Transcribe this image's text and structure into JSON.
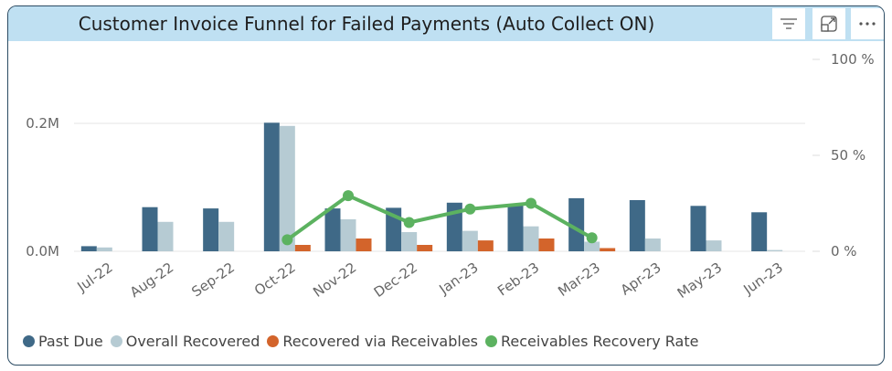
{
  "visual": {
    "title": "Customer Invoice Funnel for Failed Payments (Auto Collect ON)",
    "toolbar": [
      {
        "name": "filter-icon"
      },
      {
        "name": "focus-mode-icon"
      },
      {
        "name": "more-options-icon"
      }
    ]
  },
  "colors": {
    "past_due": "#3f6987",
    "overall_recovered": "#b6cbd3",
    "recovered_receivables": "#d3642b",
    "recovery_rate": "#5cb260",
    "title_bar": "#bfe0f2"
  },
  "chart_data": {
    "type": "bar",
    "title": "Customer Invoice Funnel for Failed Payments (Auto Collect ON)",
    "categories": [
      "Jul-22",
      "Aug-22",
      "Sep-22",
      "Oct-22",
      "Nov-22",
      "Dec-22",
      "Jan-23",
      "Feb-23",
      "Mar-23",
      "Apr-23",
      "May-23",
      "Jun-23"
    ],
    "series": [
      {
        "name": "Past Due",
        "type": "bar",
        "axis": "left",
        "values": [
          8000,
          69000,
          67000,
          201000,
          67000,
          68000,
          76000,
          73000,
          83000,
          80000,
          71000,
          61000
        ]
      },
      {
        "name": "Overall Recovered",
        "type": "bar",
        "axis": "left",
        "values": [
          6000,
          46000,
          46000,
          196000,
          50000,
          30000,
          32000,
          39000,
          15000,
          20000,
          17000,
          2000
        ]
      },
      {
        "name": "Recovered via Receivables",
        "type": "bar",
        "axis": "left",
        "values": [
          0,
          0,
          0,
          10000,
          20000,
          10000,
          17000,
          20000,
          5000,
          0,
          0,
          0
        ]
      },
      {
        "name": "Receivables Recovery Rate",
        "type": "line",
        "axis": "right",
        "values": [
          null,
          null,
          null,
          6,
          29,
          15,
          22,
          25,
          7,
          null,
          null,
          null
        ]
      }
    ],
    "y_left": {
      "ticks": [
        0,
        200000
      ],
      "tick_labels": [
        "0.0M",
        "0.2M"
      ],
      "range": [
        0,
        200000
      ]
    },
    "y_right": {
      "ticks": [
        0,
        50,
        100
      ],
      "tick_labels": [
        "0 %",
        "50 %",
        "100 %"
      ],
      "range": [
        0,
        100
      ]
    },
    "grid": true,
    "legend_position": "bottom-left"
  }
}
